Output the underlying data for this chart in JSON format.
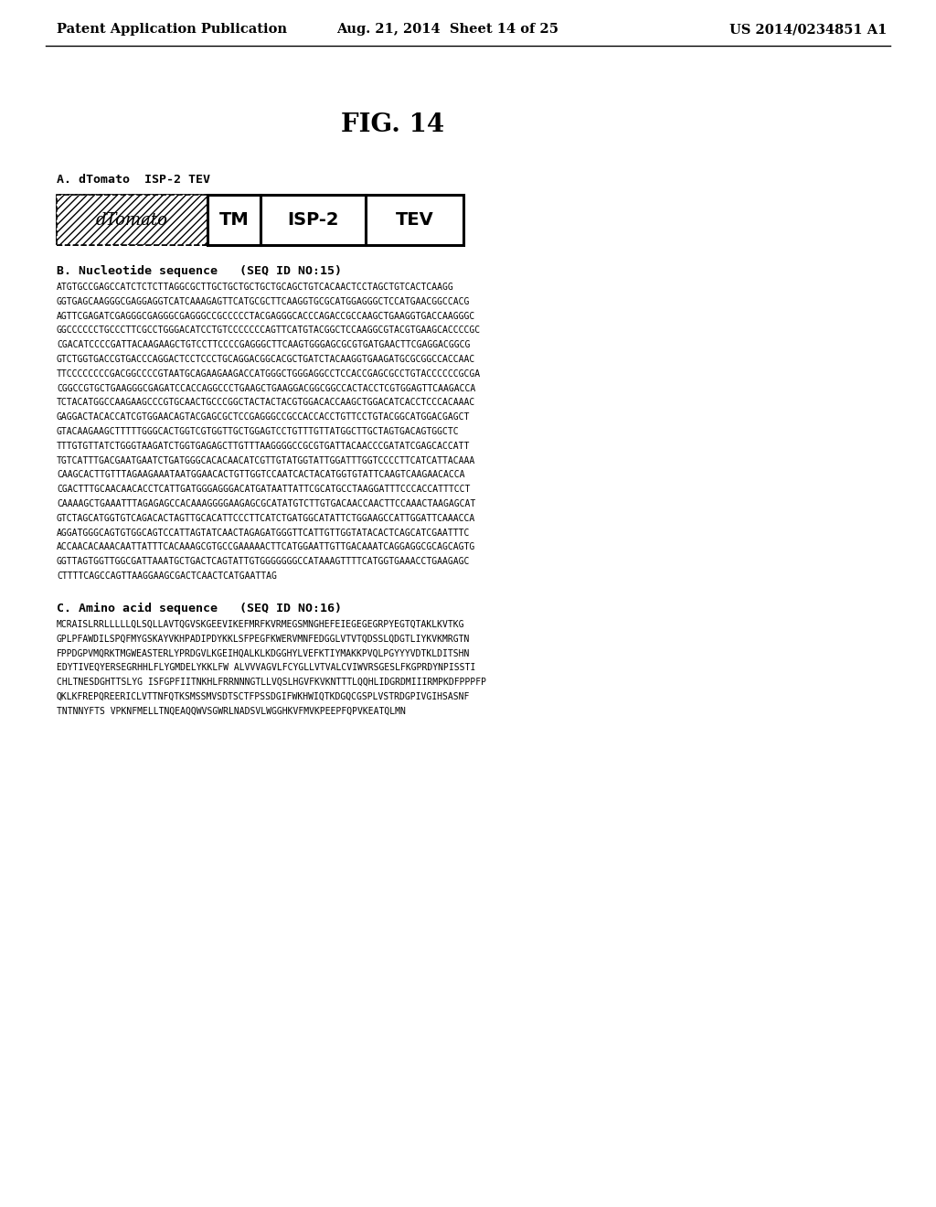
{
  "header_left": "Patent Application Publication",
  "header_middle": "Aug. 21, 2014  Sheet 14 of 25",
  "header_right": "US 2014/0234851 A1",
  "fig_label": "FIG. 14",
  "section_a_label": "A. dTomato  ISP-2 TEV",
  "section_b_label": "B. Nucleotide sequence   (SEQ ID NO:15)",
  "nucleotide_seq": [
    "ATGTGCCGAGCCATCTCTCTTAGGCGCTTGCTGCTGCTGCTGCAGCTGTCACAACTCCTAGCTGTCACTCAAGG",
    "GGTGAGCAAGGGCGAGGAGGTCATCAAAGAGTTCATGCGCTTCAAGGTGCGCATGGAGGGCTCCATGAACGGCCACG",
    "AGTTCGAGATCGAGGGCGAGGGCGAGGGCCGCCCCCTACGAGGGCACCCAGACCGCCAAGCTGAAGGTGACCAAGGGC",
    "GGCCCCCCTGCCCTTCGCCTGGGACATCCTGTCCCCCCCAGTTCATGTACGGCTCCAAGGCGTACGTGAAGCACCCCGC",
    "CGACATCCCCGATTACAAGAAGCTGTCCTTCCCCGAGGGCTTCAAGTGGGAGCGCGTGATGAACTTCGAGGACGGCG",
    "GTCTGGTGACCGTGACCCAGGACTCCTCCCTGCAGGACGGCACGCTGATCTACAAGGTGAAGATGCGCGGCCACCAAC",
    "TTCCCCCCCCGACGGCCCCGTAATGCAGAAGAAGACCATGGGCTGGGAGGCCTCCACCGAGCGCCTGTACCCCCCGCGA",
    "CGGCCGTGCTGAAGGGCGAGATCCACCAGGCCCTGAAGCTGAAGGACGGCGGCCACTACCTCGTGGAGTTCAAGACCA",
    "TCTACATGGCCAAGAAGCCCGTGCAACTGCCCGGCTACTACTACGTGGACACCAAGCTGGACATCACCTCCCACAAAC",
    "GAGGACTACACCATCGTGGAACAGTACGAGCGCTCCGAGGGCCGCCACCACCTGTTCCTGTACGGCATGGACGAGCT",
    "GTACAAGAAGCTTTTTGGGCACTGGTCGTGGTTGCTGGAGTCCTGTTTGTTATGGCTTGCTAGTGACAGTGGCTC",
    "TTTGTGTTATCTGGGTAAGATCTGGTGAGAGCTTGTTTAAGGGGCCGCGTGATTACAACCCGATATCGAGCACCATT",
    "TGTCATTTGACGAATGAATCTGATGGGCACACAACATCGTTGTATGGTATTGGATTTGGTCCCCTTCATCATTACAAA",
    "CAAGCACTTGTTTAGAAGAAATAATGGAACACTGTTGGTCCAATCACTACATGGTGTATTCAAGTCAAGAACACCA",
    "CGACTTTGCAACAACACCTCATTGATGGGAGGGACATGATAATTATTCGCATGCCTAAGGATTTCCCACCATTTCCT",
    "CAAAAGCTGAAATTTAGAGAGCCACAAAGGGGAAGAGCGCATATGTCTTGTGACAACCAACTTCCAAACTAAGAGCAT",
    "GTCTAGCATGGTGTCAGACACTAGTTGCACATTCCCTTCATCTGATGGCATATTCTGGAAGCCATTGGATTCAAACCA",
    "AGGATGGGCAGTGTGGCAGTCCATTAGTATCAACTAGAGATGGGTTCATTGTTGGTATACACTCAGCATCGAATTTC",
    "ACCAACACAAACAATTATTTCACAAAGCGTGCCGAAAAACTTCATGGAATTGTTGACAAATCAGGAGGCGCAGCAGTG",
    "GGTTAGTGGTTGGCGATTAAATGCTGACTCAGTATTGTGGGGGGGCCATAAAGTTTTCATGGTGAAACCTGAAGAGC",
    "CTTTTCAGCCAGTTAAGGAAGCGACTCAACTCATGAATTAG"
  ],
  "section_c_label": "C. Amino acid sequence   (SEQ ID NO:16)",
  "amino_acid_seq": [
    "MCRAISLRRLLLLLQLSQLLAVTQGVSKGEEVIKEFMRFKVRMEGSMNGHEFEIEGEGEGRPYEGTQTAKLKVTKG",
    "GPLPFAWDILSPQFMYGSKAYVKHPADIPDYKKLSFPEGFKWERVMNFEDGGLVTVTQDSSLQDGTLIYKVKMRGTN",
    "FPPDGPVMQRKTMGWEASTERLYPRDGVLKGEIHQALKLKDGGHYLVEFKTIYMAKKPVQLPGYYYVDTKLDITSHN",
    "EDYTIVEQYERSEGRHHLFLYGMDELYKKLFW ALVVVAGVLFCYGLLVTVALCVIWVRSGESLFKGPRDYNPISSTI",
    "CHLTNESDGHTTSLYG ISFGPFIITNKHLFRRNNNGTLLVQSLHGVFKVKNTTTLQQHLIDGRDMIIIRMPKDFPPPFP",
    "QKLKFREPQREERICLVTTNFQTKSMSSMVSDTSCTFPSSDGIFWKHWIQTKDGQCGSPLVSTRDGPIVGIHSASNF",
    "TNTNNYFTS VPKNFMELLTNQEAQQWVSGWRLNADSVLWGGHKVFMVKPEEPFQPVKEATQLMN"
  ],
  "background_color": "#ffffff",
  "text_color": "#000000"
}
